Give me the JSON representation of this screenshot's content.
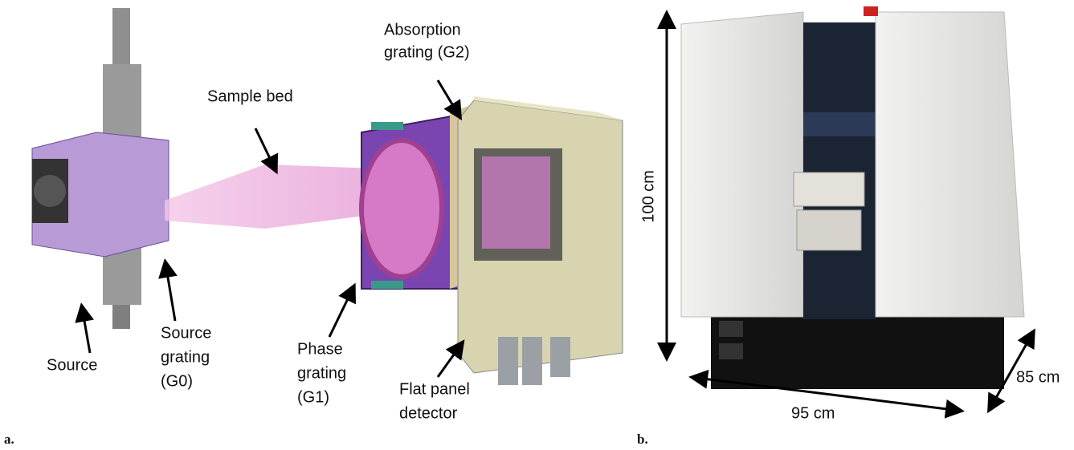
{
  "panels": [
    {
      "label": "a.",
      "annotations": [
        {
          "lines": [
            "Absorption",
            "grating (G2)"
          ]
        },
        {
          "lines": [
            "Sample bed"
          ]
        },
        {
          "lines": [
            "Source"
          ]
        },
        {
          "lines": [
            "Source",
            "grating",
            "(G0)"
          ]
        },
        {
          "lines": [
            "Phase",
            "grating",
            "(G1)"
          ]
        },
        {
          "lines": [
            "Flat panel",
            "detector"
          ]
        }
      ]
    },
    {
      "label": "b.",
      "annotations": [
        {
          "lines": [
            "100 cm"
          ]
        },
        {
          "lines": [
            "95 cm"
          ]
        },
        {
          "lines": [
            "85 cm"
          ]
        }
      ]
    }
  ]
}
